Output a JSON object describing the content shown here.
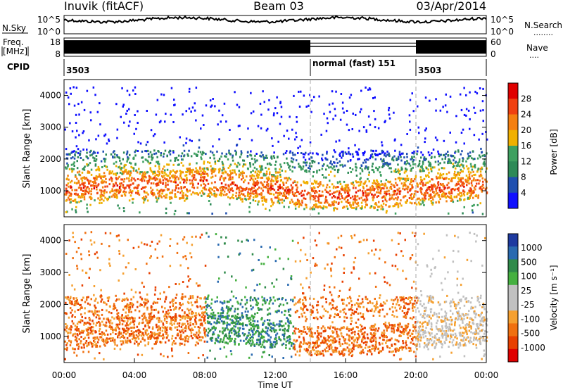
{
  "header": {
    "station": "Inuvik (fitACF)",
    "beam": "Beam 03",
    "date": "03/Apr/2014"
  },
  "nsky_panel": {
    "left_label": "N.Sky",
    "right_label": "N.Search",
    "right_dots": "........",
    "ticks_left": [
      "10^5",
      "10^0"
    ],
    "ticks_right": [
      "10^5",
      "10^0"
    ]
  },
  "freq_panel": {
    "left_label_top": "Freq.",
    "left_label_bottom": "[MHz]",
    "ticks_left": [
      "18",
      "8"
    ],
    "ticks_right": [
      "60",
      "0"
    ],
    "right_label": "Nave",
    "right_dots": "....",
    "freq_level": 0.72,
    "nave_level_norm": 0.88,
    "nave_level_fast": 0.55
  },
  "cpid_panel": {
    "label": "CPID",
    "modes": [
      {
        "label": "3503",
        "start": 0,
        "end": 14
      },
      {
        "label": "normal (fast) 151",
        "start": 14,
        "end": 20
      },
      {
        "label": "3503",
        "start": 20,
        "end": 24
      }
    ]
  },
  "colors": {
    "power_scale": [
      "#1010ff",
      "#2050b0",
      "#2e8a57",
      "#3fa060",
      "#f0b000",
      "#f57f10",
      "#f04010",
      "#e00000"
    ],
    "velocity_scale": [
      "#1e3aa0",
      "#2a6ab0",
      "#2f8a4a",
      "#45b040",
      "#c0c0c0",
      "#c0c0c0",
      "#f5a030",
      "#f07010",
      "#e84000",
      "#e00000"
    ]
  },
  "chart_data": [
    {
      "type": "heatmap",
      "quantity": "Power",
      "ylabel": "Slant Range [km]",
      "x_range": [
        0,
        24
      ],
      "y_range": [
        180,
        4500
      ],
      "yticks": [
        1000,
        2000,
        3000,
        4000
      ],
      "colorbar_label": "Power [dB]",
      "colorbar_ticks": [
        "4",
        "8",
        "12",
        "16",
        "20",
        "24",
        "28"
      ],
      "colorbar_range": [
        0,
        32
      ],
      "mode_change_times": [
        14,
        20
      ]
    },
    {
      "type": "heatmap",
      "quantity": "Velocity",
      "ylabel": "Slant Range [km]",
      "xlabel": "Time UT",
      "x_range": [
        0,
        24
      ],
      "y_range": [
        180,
        4500
      ],
      "yticks": [
        1000,
        2000,
        3000,
        4000
      ],
      "xticks": [
        "00:00",
        "04:00",
        "08:00",
        "12:00",
        "16:00",
        "20:00",
        "00:00"
      ],
      "colorbar_label": "Velocity [m s⁻¹]",
      "colorbar_ticks": [
        "1000",
        "500",
        "100",
        "25",
        "-25",
        "-100",
        "-500",
        "-1000"
      ],
      "mode_change_times": [
        14,
        20
      ]
    }
  ]
}
